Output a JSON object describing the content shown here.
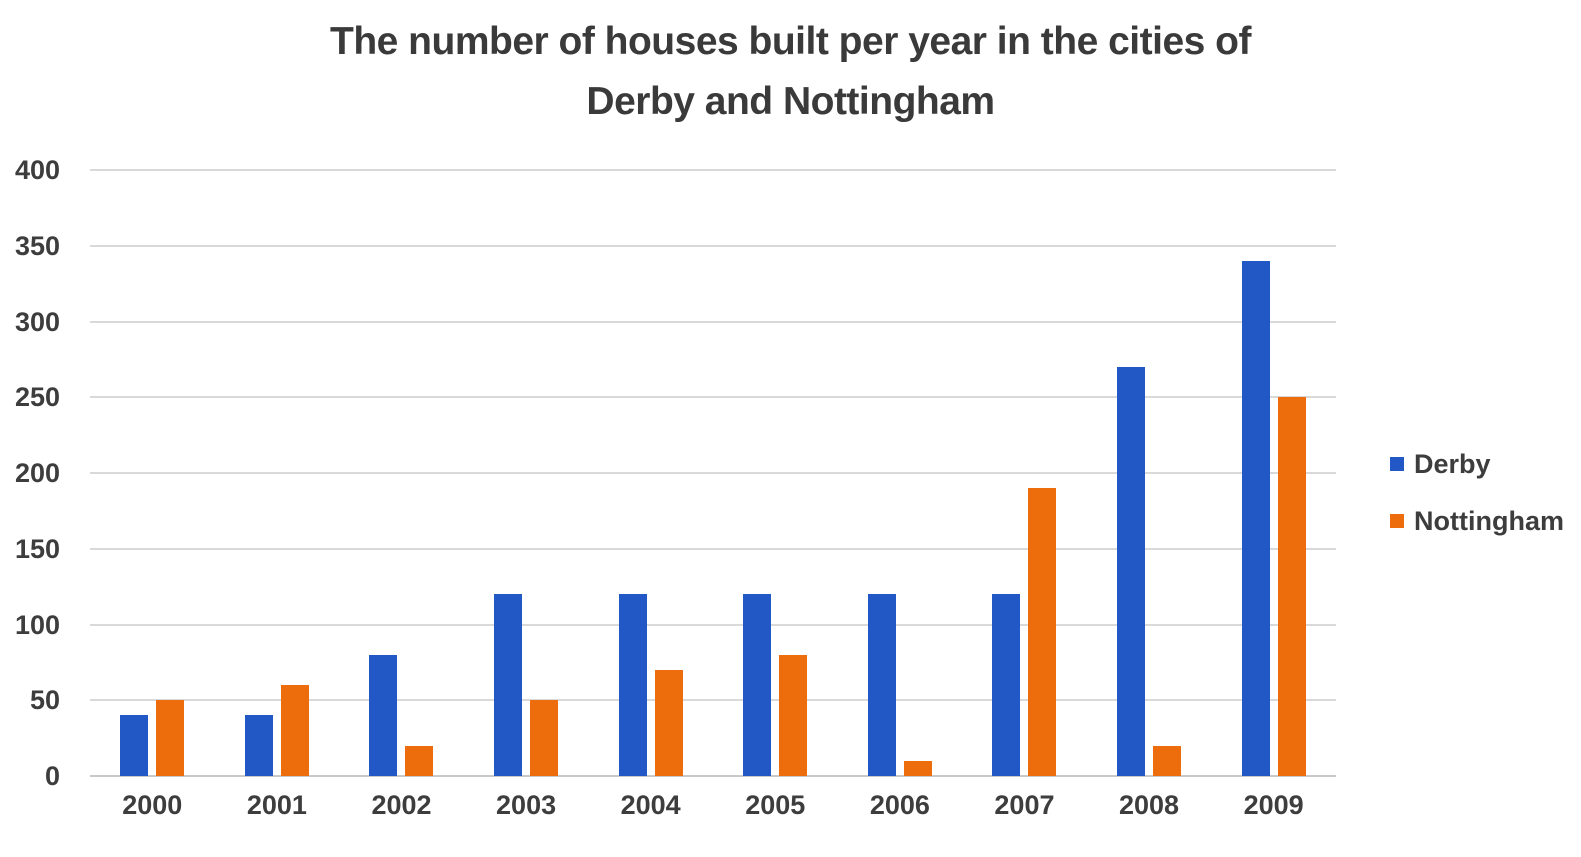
{
  "chart_data": {
    "type": "bar",
    "title": "The number of houses built per year in the cities of Derby and Nottingham",
    "title_lines": [
      "The number of houses built per year in the cities of",
      "Derby and Nottingham"
    ],
    "categories": [
      "2000",
      "2001",
      "2002",
      "2003",
      "2004",
      "2005",
      "2006",
      "2007",
      "2008",
      "2009"
    ],
    "series": [
      {
        "name": "Derby",
        "color": "#2158c6",
        "values": [
          40,
          40,
          80,
          120,
          120,
          120,
          120,
          120,
          270,
          340
        ]
      },
      {
        "name": "Nottingham",
        "color": "#ed6c0c",
        "values": [
          50,
          60,
          20,
          50,
          70,
          80,
          10,
          190,
          20,
          250
        ]
      }
    ],
    "xlabel": "",
    "ylabel": "",
    "ylim": [
      0,
      400
    ],
    "ytick_step": 50,
    "yticks": [
      0,
      50,
      100,
      150,
      200,
      250,
      300,
      350,
      400
    ],
    "grid": true,
    "legend_position": "right"
  },
  "colors": {
    "text": "#3d3d3d",
    "title_text": "#3a3a3a",
    "gridline": "#d9d9d9",
    "axis_line": "#c9c9c9",
    "background": "#ffffff",
    "derby": "#2158c6",
    "nottingham": "#ed6c0c"
  }
}
